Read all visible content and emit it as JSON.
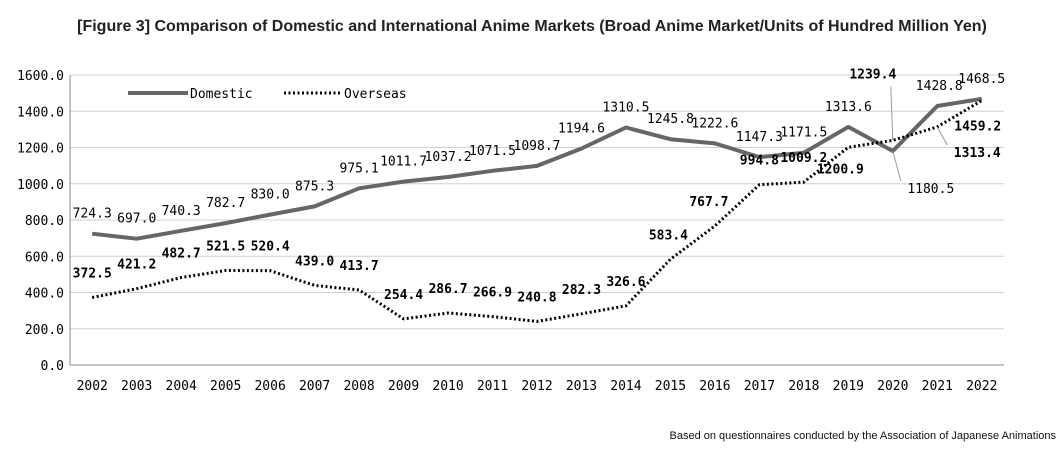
{
  "title": "[Figure 3] Comparison of Domestic and International Anime Markets (Broad Anime Market/Units of Hundred Million Yen)",
  "source": "Based on questionnaires conducted by the Association of Japanese Animations",
  "chart_data": {
    "type": "line",
    "title": "[Figure 3] Comparison of Domestic and International Anime Markets (Broad Anime Market/Units of Hundred Million Yen)",
    "xlabel": "",
    "ylabel": "",
    "ylim": [
      0,
      1600
    ],
    "yticks": [
      "0.0",
      "200.0",
      "400.0",
      "600.0",
      "800.0",
      "1000.0",
      "1200.0",
      "1400.0",
      "1600.0"
    ],
    "grid": true,
    "legend_position": "top-left",
    "categories": [
      "2002",
      "2003",
      "2004",
      "2005",
      "2006",
      "2007",
      "2008",
      "2009",
      "2010",
      "2011",
      "2012",
      "2013",
      "2014",
      "2015",
      "2016",
      "2017",
      "2018",
      "2019",
      "2020",
      "2021",
      "2022"
    ],
    "series": [
      {
        "name": "Domestic",
        "style": "solid",
        "color": "#666666",
        "values": [
          724.3,
          697.0,
          740.3,
          782.7,
          830.0,
          875.3,
          975.1,
          1011.7,
          1037.2,
          1071.5,
          1098.7,
          1194.6,
          1310.5,
          1245.8,
          1222.6,
          1147.3,
          1171.5,
          1313.6,
          1180.5,
          1428.8,
          1468.5
        ],
        "labels": [
          "724.3",
          "697.0",
          "740.3",
          "782.7",
          "830.0",
          "875.3",
          "975.1",
          "1011.7",
          "1037.2",
          "1071.5",
          "1098.7",
          "1194.6",
          "1310.5",
          "1245.8",
          "1222.6",
          "1147.3",
          "1171.5",
          "1313.6",
          "1180.5",
          "1428.8",
          "1468.5"
        ]
      },
      {
        "name": "Overseas",
        "style": "dotted",
        "color": "#000000",
        "values": [
          372.5,
          421.2,
          482.7,
          521.5,
          520.4,
          439.0,
          413.7,
          254.4,
          286.7,
          266.9,
          240.8,
          282.3,
          326.6,
          583.4,
          767.7,
          994.8,
          1009.2,
          1200.9,
          1239.4,
          1313.4,
          1459.2
        ],
        "labels": [
          "372.5",
          "421.2",
          "482.7",
          "521.5",
          "520.4",
          "439.0",
          "413.7",
          "254.4",
          "286.7",
          "266.9",
          "240.8",
          "282.3",
          "326.6",
          "583.4",
          "767.7",
          "994.8",
          "1009.2",
          "1200.9",
          "1239.4",
          "1313.4",
          "1459.2"
        ]
      }
    ]
  }
}
